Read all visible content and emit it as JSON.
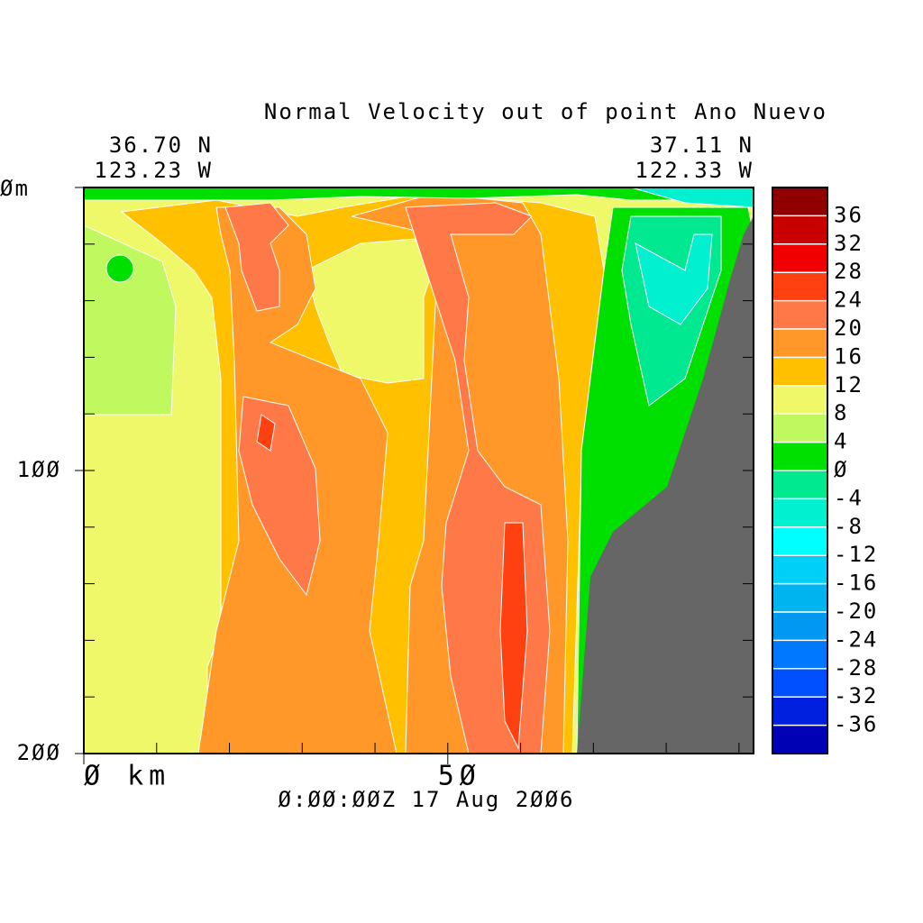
{
  "chart_data": {
    "type": "contour",
    "title": "Normal Velocity out of point Ano Nuevo",
    "left_position": [
      "36.70 N",
      "123.23 W"
    ],
    "right_position": [
      "37.11 N",
      "122.33 W"
    ],
    "footer": "Ø:ØØ:ØØZ  17 Aug 2ØØ6",
    "xlim": [
      0,
      92
    ],
    "xticks": [
      {
        "value": 0,
        "label": "Ø km"
      },
      {
        "value": 50,
        "label": "5Ø"
      }
    ],
    "xminorticks": [
      10,
      20,
      30,
      40,
      60,
      70,
      80,
      90
    ],
    "ylim": [
      200,
      0
    ],
    "yticks": [
      {
        "value": 0,
        "label": "Øm"
      },
      {
        "value": 100,
        "label": "1ØØ"
      },
      {
        "value": 200,
        "label": "2ØØ"
      }
    ],
    "yminorticks": [
      20,
      40,
      60,
      80,
      120,
      140,
      160,
      180
    ],
    "colorbar": {
      "levels": [
        -40,
        -36,
        -32,
        -28,
        -24,
        -20,
        -16,
        -12,
        -8,
        -4,
        0,
        4,
        8,
        12,
        16,
        20,
        24,
        28,
        32,
        36,
        40
      ],
      "colors": [
        "#0000b4",
        "#0020e0",
        "#0050ff",
        "#0078ff",
        "#0098f0",
        "#00b4f0",
        "#00d0f8",
        "#00ffff",
        "#00f0d0",
        "#00e890",
        "#00e000",
        "#c0f860",
        "#eef868",
        "#ffc000",
        "#ff9828",
        "#ff7848",
        "#ff4010",
        "#f00000",
        "#c80000",
        "#900000"
      ],
      "ticks": [
        -36,
        -32,
        -28,
        -24,
        -20,
        -16,
        -12,
        -8,
        -4,
        {
          "value": 0,
          "label": "Ø"
        },
        4,
        8,
        12,
        16,
        20,
        24,
        28,
        32,
        36
      ]
    }
  }
}
